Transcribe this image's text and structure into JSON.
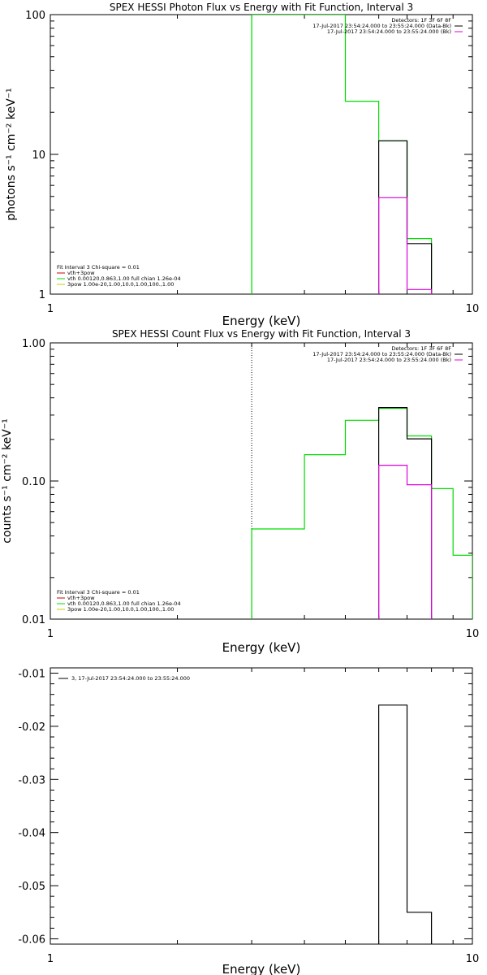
{
  "colors": {
    "data": "#000000",
    "model": "#00dd00",
    "bkg": "#dd00dd",
    "vth": "#cc0000",
    "bpow": "#cccc00"
  },
  "chart_data": [
    {
      "type": "line",
      "title": "SPEX HESSI Photon Flux vs Energy with Fit Function, Interval 3",
      "xlabel": "Energy (keV)",
      "ylabel": "photons s⁻¹ cm⁻² keV⁻¹",
      "xscale": "log",
      "yscale": "log",
      "xlim": [
        1,
        10
      ],
      "ylim": [
        1,
        100
      ],
      "xticks": [
        {
          "v": 1,
          "label": "1"
        },
        {
          "v": 10,
          "label": "10"
        }
      ],
      "yticks": [
        {
          "v": 1,
          "label": "1"
        },
        {
          "v": 10,
          "label": "10"
        },
        {
          "v": 100,
          "label": "100"
        }
      ],
      "header_lines": [
        {
          "text": "Detectors: 1F 3F 6F 8F",
          "line": null
        },
        {
          "text": "17-Jul-2017 23:54:24.000 to 23:55:24.000 (Data-Bk)",
          "line": "data"
        },
        {
          "text": "17-Jul-2017 23:54:24.000 to 23:55:24.000 (Bk)",
          "line": "bkg"
        }
      ],
      "fit_title": "Fit Interval 3   Chi-square = 0.01",
      "fit_lines": [
        {
          "text": "vth+3pow",
          "color": "vth"
        },
        {
          "text": "vth 0.00120,0.863,1.00  full chian 1.26e-04",
          "color": "model"
        },
        {
          "text": "3pow 1.00e-20,1.00,10.0,1.00,100.,1.00",
          "color": "bpow"
        }
      ],
      "vline": {
        "x": 3.0,
        "style": "solid",
        "color": "model"
      },
      "series": [
        {
          "role": "model",
          "edges": [
            3.0,
            4.0,
            5.0,
            6.0,
            7.0,
            8.0
          ],
          "values": [
            100,
            100,
            24,
            12.5,
            2.5
          ]
        },
        {
          "role": "data",
          "edges": [
            6.0,
            7.0,
            8.0
          ],
          "values": [
            12.5,
            2.3
          ]
        },
        {
          "role": "bkg",
          "edges": [
            6.0,
            7.0,
            8.0
          ],
          "values": [
            4.9,
            1.08
          ]
        }
      ]
    },
    {
      "type": "line",
      "title": "SPEX HESSI Count Flux vs Energy with Fit Function, Interval 3",
      "xlabel": "Energy (keV)",
      "ylabel": "counts s⁻¹ cm⁻² keV⁻¹",
      "xscale": "log",
      "yscale": "log",
      "xlim": [
        1,
        10
      ],
      "ylim": [
        0.01,
        1.0
      ],
      "xticks": [
        {
          "v": 1,
          "label": "1"
        },
        {
          "v": 10,
          "label": "10"
        }
      ],
      "yticks": [
        {
          "v": 0.01,
          "label": "0.01"
        },
        {
          "v": 0.1,
          "label": "0.10"
        },
        {
          "v": 1.0,
          "label": "1.00"
        }
      ],
      "header_lines": [
        {
          "text": "Detectors: 1F 3F 6F 8F",
          "line": null
        },
        {
          "text": "17-Jul-2017 23:54:24.000 to 23:55:24.000 (Data-Bk)",
          "line": "data"
        },
        {
          "text": "17-Jul-2017 23:54:24.000 to 23:55:24.000 (Bk)",
          "line": "bkg"
        }
      ],
      "fit_title": "Fit Interval 3   Chi-square = 0.01",
      "fit_lines": [
        {
          "text": "vth+3pow",
          "color": "vth"
        },
        {
          "text": "vth 0.00120,0.863,1.00  full chian 1.26e-04",
          "color": "model"
        },
        {
          "text": "3pow 1.00e-20,1.00,10.0,1.00,100.,1.00",
          "color": "bpow"
        }
      ],
      "vline": {
        "x": 3.0,
        "style": "dotted",
        "color": "data"
      },
      "series": [
        {
          "role": "model",
          "edges": [
            3.0,
            4.0,
            5.0,
            6.0,
            7.0,
            8.0,
            9.0,
            10.0
          ],
          "values": [
            0.045,
            0.155,
            0.275,
            0.335,
            0.212,
            0.088,
            0.029
          ]
        },
        {
          "role": "data",
          "edges": [
            6.0,
            7.0,
            8.0
          ],
          "values": [
            0.34,
            0.202
          ]
        },
        {
          "role": "bkg",
          "edges": [
            6.0,
            7.0,
            8.0
          ],
          "values": [
            0.13,
            0.094
          ]
        }
      ]
    },
    {
      "type": "line",
      "title": "",
      "xlabel": "Energy (keV)",
      "ylabel": "",
      "xscale": "log",
      "yscale": "linear",
      "xlim": [
        1,
        10
      ],
      "ylim": [
        -0.061,
        -0.009
      ],
      "xticks": [
        {
          "v": 1,
          "label": "1"
        },
        {
          "v": 10,
          "label": "10"
        }
      ],
      "yticks": [
        {
          "v": -0.01,
          "label": "-0.01"
        },
        {
          "v": -0.02,
          "label": "-0.02"
        },
        {
          "v": -0.03,
          "label": "-0.03"
        },
        {
          "v": -0.04,
          "label": "-0.04"
        },
        {
          "v": -0.05,
          "label": "-0.05"
        },
        {
          "v": -0.06,
          "label": "-0.06"
        }
      ],
      "legend": [
        {
          "text": "3, 17-Jul-2017 23:54:24.000 to 23:55:24.000",
          "line": "data"
        }
      ],
      "series": [
        {
          "role": "data",
          "edges": [
            6.0,
            7.0,
            8.0
          ],
          "values": [
            -0.016,
            -0.055
          ]
        }
      ]
    }
  ]
}
